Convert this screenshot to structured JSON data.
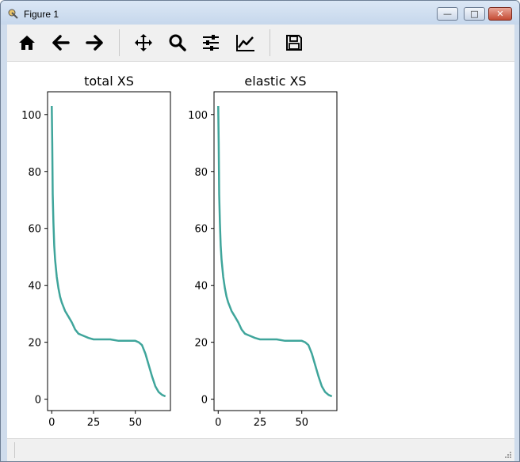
{
  "window": {
    "title": "Figure 1"
  },
  "toolbar": {
    "items": [
      {
        "icon": "home-icon"
      },
      {
        "icon": "arrow-left-icon"
      },
      {
        "icon": "arrow-right-icon"
      },
      {
        "icon": "pan-icon"
      },
      {
        "icon": "zoom-icon"
      },
      {
        "icon": "subplots-icon"
      },
      {
        "icon": "edit-axes-icon"
      },
      {
        "icon": "save-icon"
      }
    ]
  },
  "colors": {
    "line": "#3fa59b",
    "titlebar": "#cfdcec",
    "toolbar": "#f0f0f0"
  },
  "chart_data": [
    {
      "type": "line",
      "title": "total XS",
      "xlabel": "",
      "ylabel": "",
      "xlim": [
        -2.5,
        71
      ],
      "ylim": [
        -4,
        108
      ],
      "xticks": [
        "0",
        "25",
        "50"
      ],
      "yticks": [
        "0",
        "20",
        "40",
        "60",
        "80",
        "100"
      ],
      "grid": false,
      "series": [
        {
          "x": [
            0,
            0.3,
            0.6,
            1,
            1.5,
            2,
            3,
            4,
            5,
            6,
            8,
            10,
            12,
            14,
            16,
            18,
            20,
            22,
            25,
            30,
            35,
            40,
            45,
            50,
            52,
            54,
            56,
            58,
            60,
            62,
            64,
            66,
            68
          ],
          "y": [
            103,
            90,
            72,
            62,
            54,
            49,
            43,
            39,
            36,
            34,
            31,
            29,
            27,
            24.5,
            23,
            22.5,
            22,
            21.5,
            21,
            21,
            21,
            20.5,
            20.5,
            20.5,
            20,
            19,
            16,
            12,
            8,
            4.5,
            2.5,
            1.5,
            1
          ]
        }
      ]
    },
    {
      "type": "line",
      "title": "elastic XS",
      "xlabel": "",
      "ylabel": "",
      "xlim": [
        -2.5,
        71
      ],
      "ylim": [
        -4,
        108
      ],
      "xticks": [
        "0",
        "25",
        "50"
      ],
      "yticks": [
        "0",
        "20",
        "40",
        "60",
        "80",
        "100"
      ],
      "grid": false,
      "series": [
        {
          "x": [
            0,
            0.3,
            0.6,
            1,
            1.5,
            2,
            3,
            4,
            5,
            6,
            8,
            10,
            12,
            14,
            16,
            18,
            20,
            22,
            25,
            30,
            35,
            40,
            45,
            50,
            52,
            54,
            56,
            58,
            60,
            62,
            64,
            66,
            68
          ],
          "y": [
            103,
            90,
            72,
            62,
            54,
            49,
            43,
            39,
            36,
            34,
            31,
            29,
            27,
            24.5,
            23,
            22.5,
            22,
            21.5,
            21,
            21,
            21,
            20.5,
            20.5,
            20.5,
            20,
            19,
            16,
            12,
            8,
            4.5,
            2.5,
            1.5,
            1
          ]
        }
      ]
    }
  ]
}
